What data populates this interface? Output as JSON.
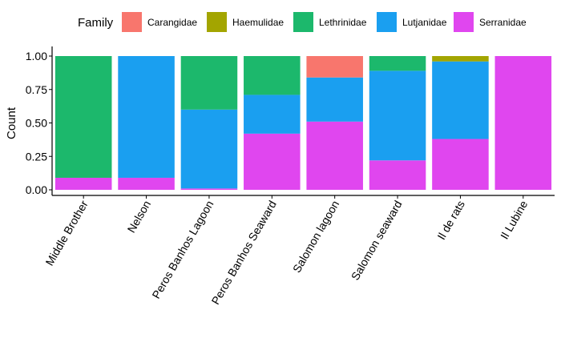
{
  "chart_data": {
    "type": "bar",
    "stacked": true,
    "ylabel": "Count",
    "xlabel": "",
    "ylim": [
      0,
      1
    ],
    "yticks": [
      "0.00",
      "0.25",
      "0.50",
      "0.75",
      "1.00"
    ],
    "legend": {
      "title": "Family",
      "position": "top"
    },
    "categories": [
      "Middle Brother",
      "Nelson",
      "Peros Banhos Lagoon",
      "Peros Banhos Seaward",
      "Salomon lagoon",
      "Salomon seaward",
      "Il de rats",
      "Il Lubine"
    ],
    "series": [
      {
        "name": "Carangidae",
        "color": "#F8766D",
        "values": [
          0,
          0,
          0,
          0,
          0.16,
          0,
          0,
          0
        ]
      },
      {
        "name": "Haemulidae",
        "color": "#A3A500",
        "values": [
          0,
          0,
          0,
          0,
          0,
          0,
          0.04,
          0
        ]
      },
      {
        "name": "Lethrinidae",
        "color": "#1CB86C",
        "values": [
          0.91,
          0,
          0.4,
          0.29,
          0,
          0.11,
          0,
          0
        ]
      },
      {
        "name": "Lutjanidae",
        "color": "#1A9FF0",
        "values": [
          0,
          0.91,
          0.59,
          0.29,
          0.33,
          0.67,
          0.58,
          0
        ]
      },
      {
        "name": "Serranidae",
        "color": "#E046EF",
        "values": [
          0.09,
          0.09,
          0.01,
          0.42,
          0.51,
          0.22,
          0.38,
          1.0
        ]
      }
    ]
  }
}
